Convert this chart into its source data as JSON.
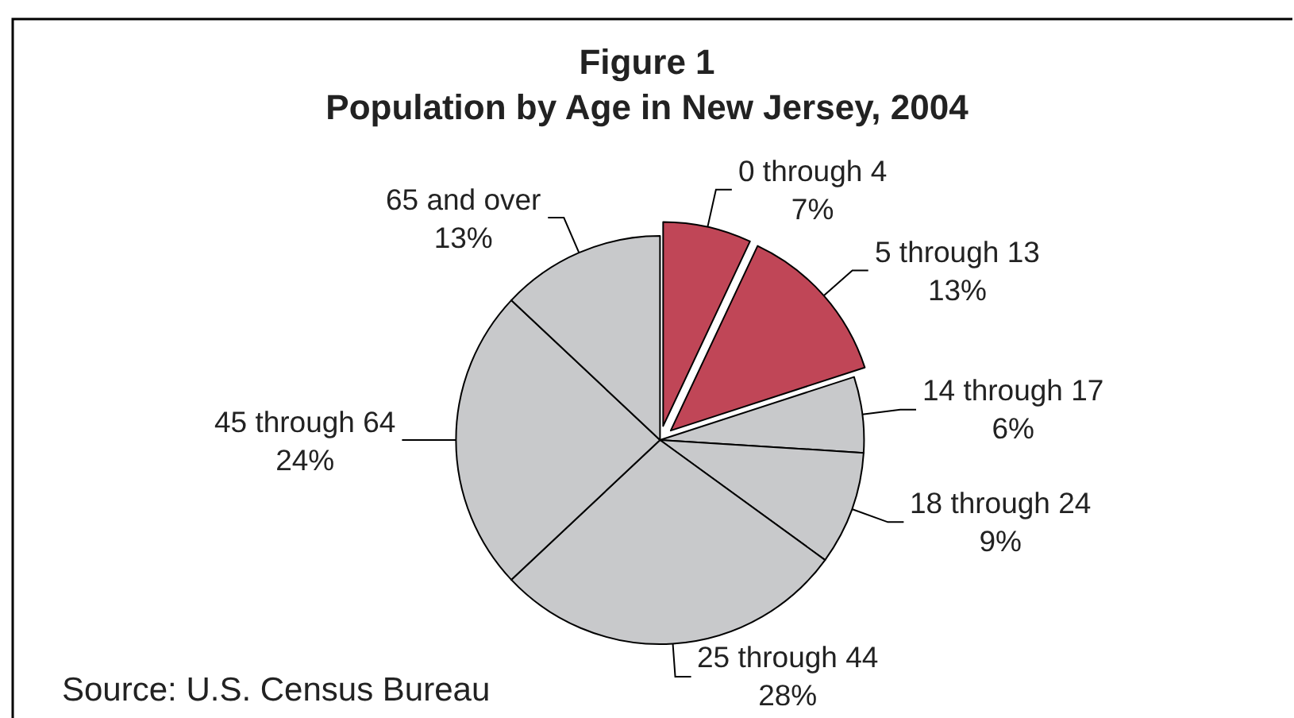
{
  "chart_data": {
    "type": "pie",
    "title": "Figure 1\nPopulation by Age in New Jersey, 2004",
    "categories": [
      "0 through 4",
      "5 through 13",
      "14 through 17",
      "18 through 24",
      "25 through 44",
      "45 through 64",
      "65 and over"
    ],
    "values": [
      7,
      13,
      6,
      9,
      28,
      24,
      13
    ],
    "value_labels": [
      "7%",
      "13%",
      "6%",
      "9%",
      "28%",
      "24%",
      "13%"
    ],
    "colors": [
      "#c04657",
      "#c04657",
      "#c8c9cb",
      "#c8c9cb",
      "#c8c9cb",
      "#c8c9cb",
      "#c8c9cb"
    ],
    "annotations": [
      "Source: U.S. Census Bureau"
    ]
  }
}
